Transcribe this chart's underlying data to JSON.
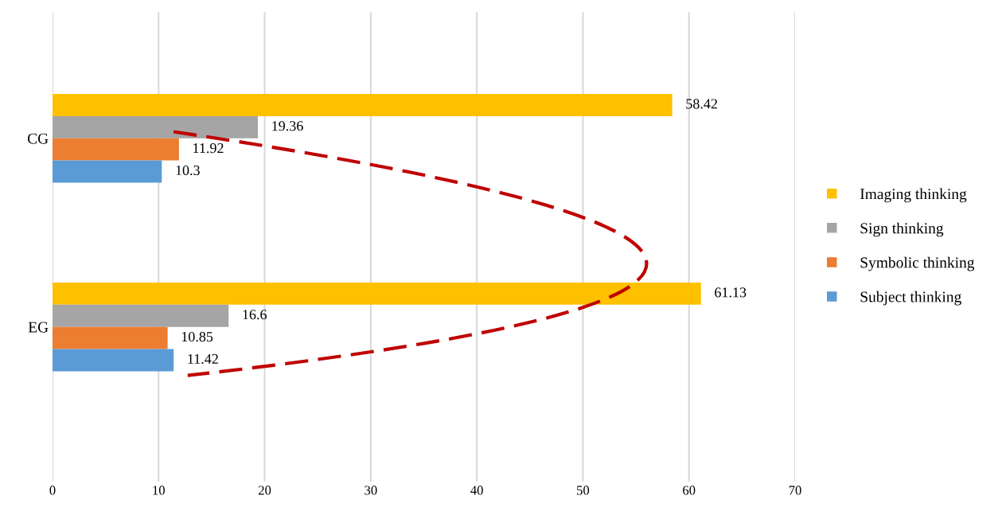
{
  "chart_data": {
    "type": "bar",
    "orientation": "horizontal",
    "categories": [
      "CG",
      "EG"
    ],
    "series": [
      {
        "name": "Imaging thinking",
        "color": "#ffc000",
        "values": [
          58.42,
          61.13
        ]
      },
      {
        "name": "Sign thinking",
        "color": "#a5a5a5",
        "values": [
          19.36,
          16.6
        ]
      },
      {
        "name": "Symbolic thinking",
        "color": "#ed7d31",
        "values": [
          11.92,
          10.85
        ]
      },
      {
        "name": "Subject thinking",
        "color": "#5b9bd5",
        "values": [
          10.3,
          11.42
        ]
      }
    ],
    "xlim": [
      0,
      70
    ],
    "xticks": [
      0,
      10,
      20,
      30,
      40,
      50,
      60,
      70
    ],
    "grid": "x",
    "legend": "right",
    "data_labels": true
  }
}
